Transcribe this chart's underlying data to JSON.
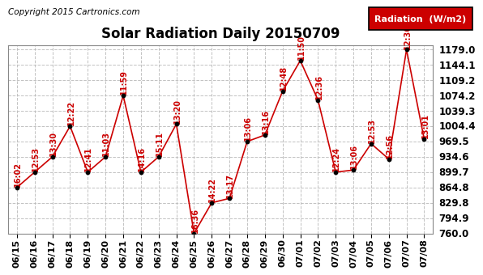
{
  "title": "Solar Radiation Daily 20150709",
  "copyright": "Copyright 2015 Cartronics.com",
  "legend_label": "Radiation  (W/m2)",
  "dates": [
    "06/15",
    "06/16",
    "06/17",
    "06/18",
    "06/19",
    "06/20",
    "06/21",
    "06/22",
    "06/23",
    "06/24",
    "06/25",
    "06/26",
    "06/27",
    "06/28",
    "06/29",
    "06/30",
    "07/01",
    "07/02",
    "07/03",
    "07/04",
    "07/05",
    "07/06",
    "07/07",
    "07/08"
  ],
  "values": [
    864.8,
    899.7,
    934.6,
    1004.4,
    899.7,
    934.6,
    1074.2,
    899.7,
    934.6,
    1009.3,
    760.0,
    829.8,
    839.8,
    969.5,
    984.4,
    1084.2,
    1154.1,
    1064.2,
    899.7,
    904.4,
    964.6,
    929.5,
    1179.0,
    974.5
  ],
  "labels": [
    "16:02",
    "12:53",
    "13:30",
    "12:22",
    "12:41",
    "11:03",
    "11:59",
    "14:16",
    "15:11",
    "13:20",
    "16:36",
    "14:22",
    "13:17",
    "13:06",
    "13:16",
    "12:48",
    "11:50",
    "12:36",
    "12:24",
    "13:06",
    "12:53",
    "12:56",
    "12:36",
    "13:01"
  ],
  "ylim_min": 760.0,
  "ylim_max": 1179.0,
  "yticks": [
    760.0,
    794.9,
    829.8,
    864.8,
    899.7,
    934.6,
    969.5,
    1004.4,
    1039.3,
    1074.2,
    1109.2,
    1144.1,
    1179.0
  ],
  "line_color": "#cc0000",
  "marker_color": "#000000",
  "bg_color": "#ffffff",
  "grid_color": "#bbbbbb",
  "label_color": "#cc0000",
  "legend_bg": "#cc0000",
  "legend_text_color": "#ffffff",
  "title_fontsize": 12,
  "label_fontsize": 7,
  "tick_fontsize": 8.5,
  "copyright_fontsize": 7.5
}
